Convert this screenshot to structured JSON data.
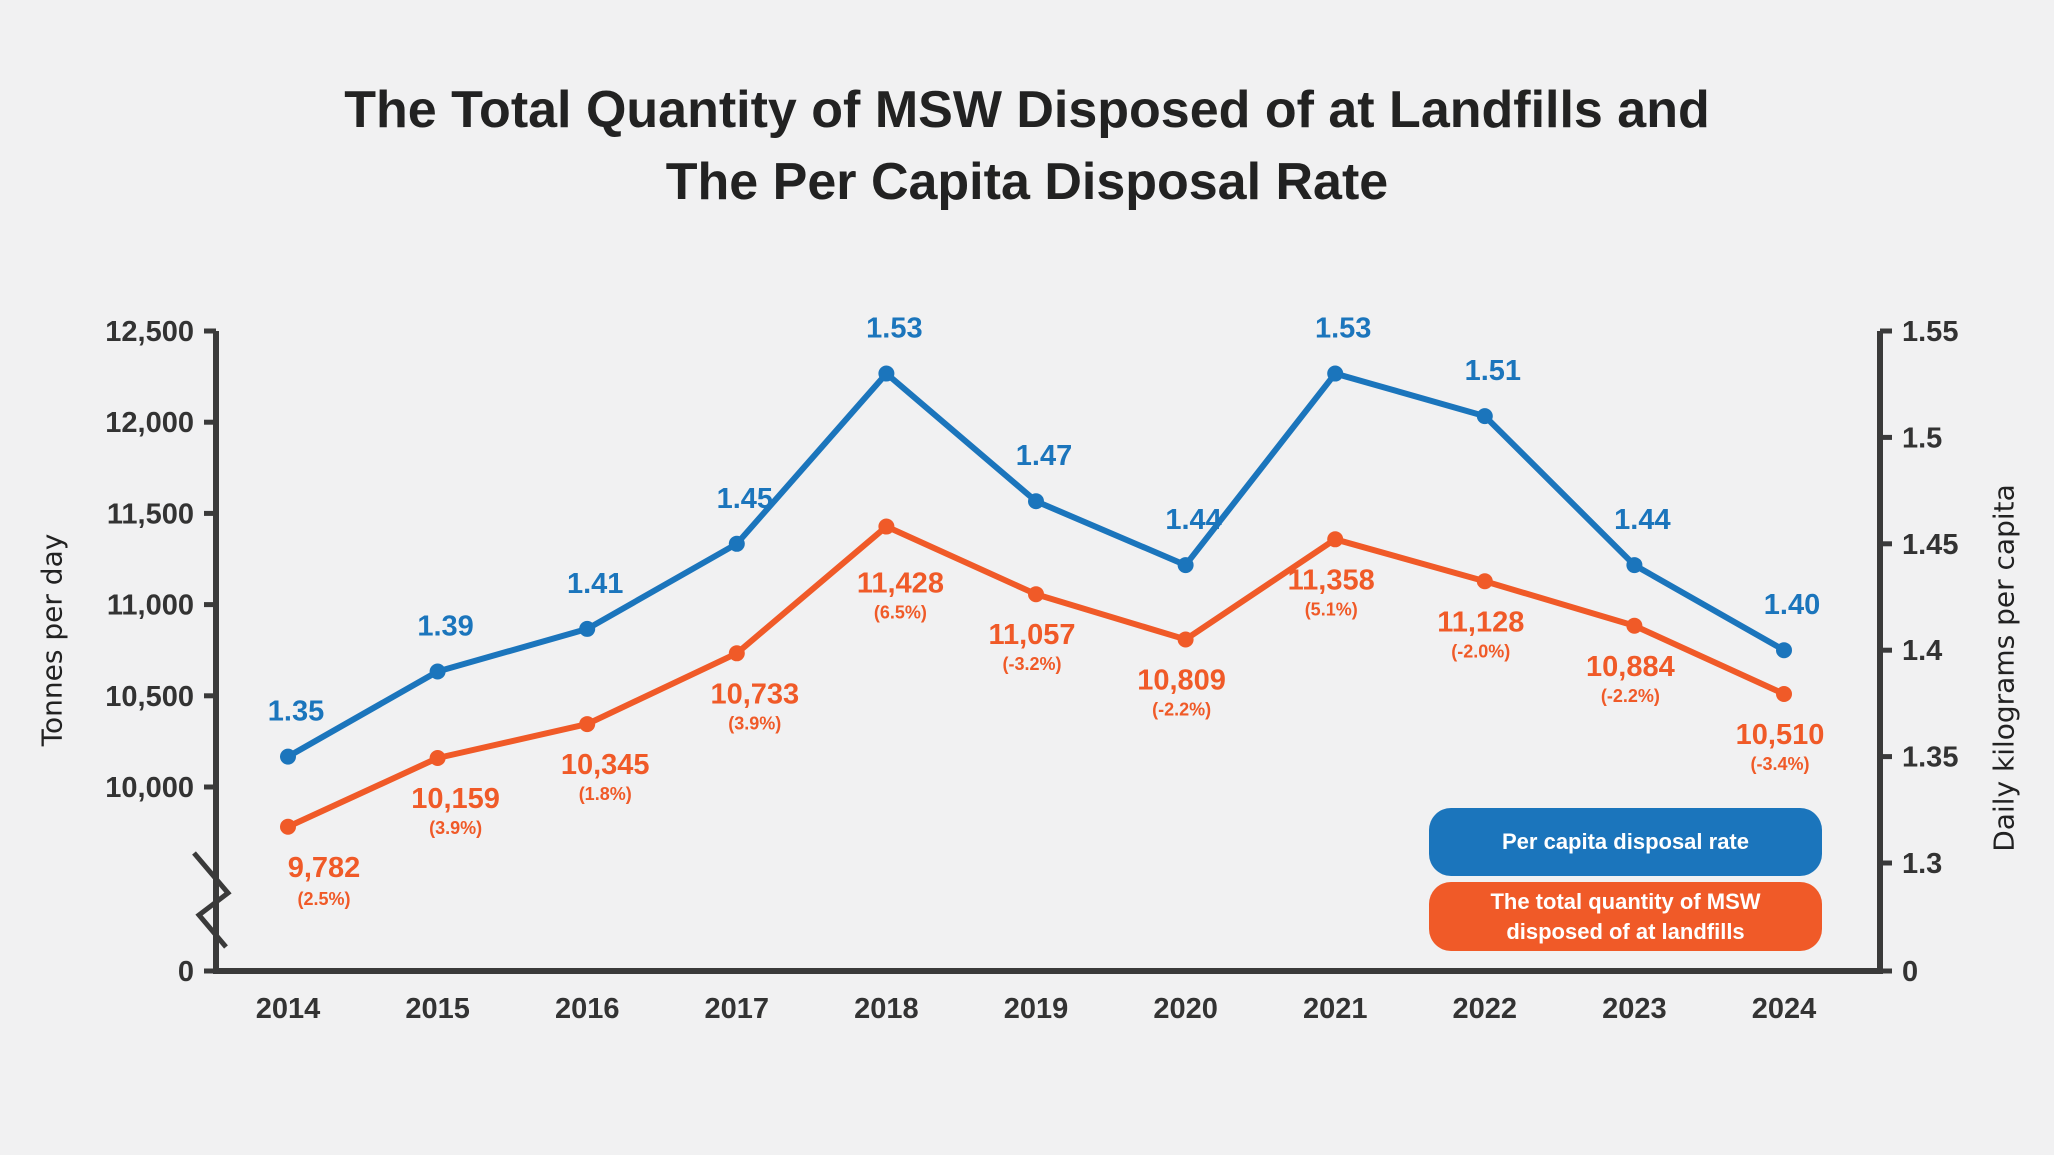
{
  "chart_data": {
    "type": "line",
    "title_line1": "The Total Quantity of MSW Disposed of at Landfills and",
    "title_line2": "The Per Capita Disposal Rate",
    "x": [
      "2014",
      "2015",
      "2016",
      "2017",
      "2018",
      "2019",
      "2020",
      "2021",
      "2022",
      "2023",
      "2024"
    ],
    "ylabel_left": "Tonnes per day",
    "ylabel_right": "Daily kilograms per capita",
    "left_ticks": [
      "0",
      "10,000",
      "10,500",
      "11,000",
      "11,500",
      "12,000",
      "12,500"
    ],
    "right_ticks": [
      "0",
      "1.3",
      "1.35",
      "1.4",
      "1.45",
      "1.5",
      "1.55"
    ],
    "left_axis_break": true,
    "series": [
      {
        "name": "Per capita disposal rate",
        "axis": "right",
        "color": "#1b75bc",
        "values": [
          1.35,
          1.39,
          1.41,
          1.45,
          1.53,
          1.47,
          1.44,
          1.53,
          1.51,
          1.44,
          1.4
        ],
        "labels": [
          "1.35",
          "1.39",
          "1.41",
          "1.45",
          "1.53",
          "1.47",
          "1.44",
          "1.53",
          "1.51",
          "1.44",
          "1.40"
        ]
      },
      {
        "name": "The total quantity of MSW disposed of at landfills",
        "axis": "left",
        "color": "#f05a28",
        "values": [
          9782,
          10159,
          10345,
          10733,
          11428,
          11057,
          10809,
          11358,
          11128,
          10884,
          10510
        ],
        "labels": [
          "9,782",
          "10,159",
          "10,345",
          "10,733",
          "11,428",
          "11,057",
          "10,809",
          "11,358",
          "11,128",
          "10,884",
          "10,510"
        ],
        "changes": [
          "(2.5%)",
          "(3.9%)",
          "(1.8%)",
          "(3.9%)",
          "(6.5%)",
          "(-3.2%)",
          "(-2.2%)",
          "(5.1%)",
          "(-2.0%)",
          "(-2.2%)",
          "(-3.4%)"
        ]
      }
    ],
    "legend": {
      "placement": "bottom-right",
      "items": [
        "Per capita disposal rate",
        "The total quantity of MSW disposed of at landfills"
      ]
    }
  }
}
